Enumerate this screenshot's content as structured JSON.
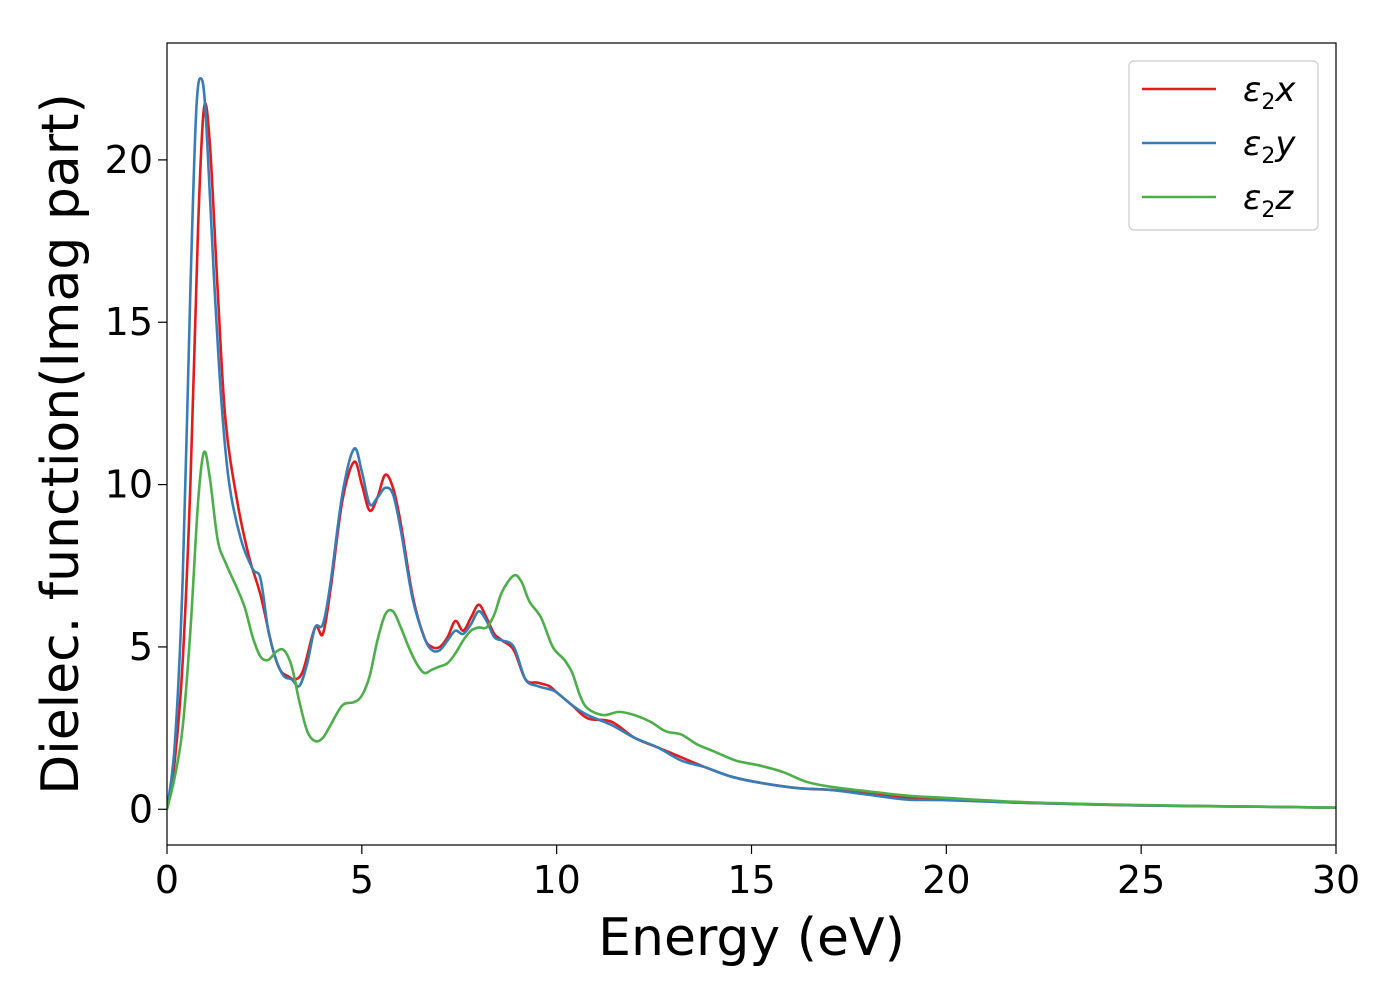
{
  "chart_data": {
    "type": "line",
    "xlabel": "Energy (eV)",
    "ylabel": "Dielec. function(Imag part)",
    "xlim": [
      0,
      30
    ],
    "ylim": [
      -1.1,
      23.6
    ],
    "xticks": [
      "0",
      "5",
      "10",
      "15",
      "20",
      "25",
      "30"
    ],
    "yticks": [
      "0",
      "5",
      "10",
      "15",
      "20"
    ],
    "grid": false,
    "legend_position": "top-right",
    "series": [
      {
        "name": "ε2x",
        "legend_base": "ε",
        "legend_sub": "2",
        "legend_tail": "x",
        "color": "#e41a1c",
        "points": [
          [
            0,
            0
          ],
          [
            0.2,
            1.5
          ],
          [
            0.4,
            4.5
          ],
          [
            0.6,
            10
          ],
          [
            0.8,
            18
          ],
          [
            0.95,
            21.6
          ],
          [
            1.1,
            20.5
          ],
          [
            1.3,
            16
          ],
          [
            1.5,
            12
          ],
          [
            1.8,
            9.5
          ],
          [
            2.1,
            7.8
          ],
          [
            2.4,
            6.6
          ],
          [
            2.7,
            5.0
          ],
          [
            2.9,
            4.3
          ],
          [
            3.1,
            4.1
          ],
          [
            3.3,
            4.0
          ],
          [
            3.5,
            4.3
          ],
          [
            3.8,
            5.6
          ],
          [
            4.0,
            5.4
          ],
          [
            4.2,
            6.8
          ],
          [
            4.5,
            9.5
          ],
          [
            4.8,
            10.7
          ],
          [
            5.0,
            10.0
          ],
          [
            5.2,
            9.2
          ],
          [
            5.4,
            9.6
          ],
          [
            5.6,
            10.3
          ],
          [
            5.8,
            9.9
          ],
          [
            6.0,
            8.8
          ],
          [
            6.3,
            6.6
          ],
          [
            6.6,
            5.3
          ],
          [
            6.8,
            5.0
          ],
          [
            7.0,
            5.0
          ],
          [
            7.2,
            5.3
          ],
          [
            7.4,
            5.8
          ],
          [
            7.6,
            5.5
          ],
          [
            7.8,
            5.9
          ],
          [
            8.0,
            6.3
          ],
          [
            8.2,
            5.9
          ],
          [
            8.4,
            5.4
          ],
          [
            8.6,
            5.2
          ],
          [
            8.9,
            4.9
          ],
          [
            9.2,
            4.0
          ],
          [
            9.5,
            3.9
          ],
          [
            9.8,
            3.8
          ],
          [
            10.0,
            3.6
          ],
          [
            10.4,
            3.2
          ],
          [
            10.8,
            2.8
          ],
          [
            11.4,
            2.7
          ],
          [
            12.0,
            2.2
          ],
          [
            12.6,
            1.9
          ],
          [
            13.2,
            1.6
          ],
          [
            13.8,
            1.3
          ],
          [
            14.5,
            1.0
          ],
          [
            15.3,
            0.8
          ],
          [
            16.2,
            0.65
          ],
          [
            17.0,
            0.6
          ],
          [
            18.0,
            0.5
          ],
          [
            19.0,
            0.35
          ],
          [
            20.0,
            0.3
          ],
          [
            22.0,
            0.2
          ],
          [
            25.0,
            0.12
          ],
          [
            28.0,
            0.08
          ],
          [
            30.0,
            0.05
          ]
        ]
      },
      {
        "name": "ε2y",
        "legend_base": "ε",
        "legend_sub": "2",
        "legend_tail": "y",
        "color": "#377eb8",
        "points": [
          [
            0,
            0
          ],
          [
            0.2,
            2.0
          ],
          [
            0.4,
            7
          ],
          [
            0.6,
            16
          ],
          [
            0.75,
            21.5
          ],
          [
            0.88,
            22.5
          ],
          [
            1.0,
            21.3
          ],
          [
            1.2,
            16.5
          ],
          [
            1.4,
            12.5
          ],
          [
            1.6,
            10
          ],
          [
            1.9,
            8.3
          ],
          [
            2.2,
            7.4
          ],
          [
            2.4,
            7.1
          ],
          [
            2.6,
            5.5
          ],
          [
            2.8,
            4.6
          ],
          [
            3.0,
            4.1
          ],
          [
            3.2,
            4.0
          ],
          [
            3.4,
            3.8
          ],
          [
            3.6,
            4.5
          ],
          [
            3.8,
            5.6
          ],
          [
            4.0,
            5.7
          ],
          [
            4.2,
            7.0
          ],
          [
            4.5,
            9.7
          ],
          [
            4.8,
            11.1
          ],
          [
            5.0,
            10.4
          ],
          [
            5.2,
            9.4
          ],
          [
            5.4,
            9.6
          ],
          [
            5.6,
            9.9
          ],
          [
            5.8,
            9.7
          ],
          [
            6.0,
            8.6
          ],
          [
            6.3,
            6.5
          ],
          [
            6.6,
            5.3
          ],
          [
            6.8,
            4.9
          ],
          [
            7.0,
            4.9
          ],
          [
            7.2,
            5.2
          ],
          [
            7.4,
            5.5
          ],
          [
            7.6,
            5.4
          ],
          [
            7.8,
            5.7
          ],
          [
            8.0,
            6.1
          ],
          [
            8.2,
            5.8
          ],
          [
            8.4,
            5.3
          ],
          [
            8.6,
            5.2
          ],
          [
            8.9,
            5.0
          ],
          [
            9.2,
            4.0
          ],
          [
            9.5,
            3.8
          ],
          [
            9.8,
            3.7
          ],
          [
            10.0,
            3.6
          ],
          [
            10.4,
            3.2
          ],
          [
            10.8,
            2.9
          ],
          [
            11.4,
            2.6
          ],
          [
            12.0,
            2.2
          ],
          [
            12.6,
            1.9
          ],
          [
            13.2,
            1.5
          ],
          [
            13.8,
            1.3
          ],
          [
            14.5,
            1.0
          ],
          [
            15.3,
            0.8
          ],
          [
            16.2,
            0.65
          ],
          [
            17.0,
            0.6
          ],
          [
            18.0,
            0.45
          ],
          [
            19.0,
            0.3
          ],
          [
            20.0,
            0.28
          ],
          [
            22.0,
            0.2
          ],
          [
            25.0,
            0.12
          ],
          [
            28.0,
            0.08
          ],
          [
            30.0,
            0.05
          ]
        ]
      },
      {
        "name": "ε2z",
        "legend_base": "ε",
        "legend_sub": "2",
        "legend_tail": "z",
        "color": "#4daf4a",
        "points": [
          [
            0,
            0
          ],
          [
            0.2,
            1.0
          ],
          [
            0.4,
            2.5
          ],
          [
            0.6,
            5.5
          ],
          [
            0.8,
            9.5
          ],
          [
            0.95,
            11.0
          ],
          [
            1.1,
            10.2
          ],
          [
            1.3,
            8.3
          ],
          [
            1.5,
            7.6
          ],
          [
            1.8,
            6.8
          ],
          [
            2.0,
            6.2
          ],
          [
            2.2,
            5.3
          ],
          [
            2.4,
            4.7
          ],
          [
            2.6,
            4.6
          ],
          [
            2.8,
            4.85
          ],
          [
            3.0,
            4.9
          ],
          [
            3.2,
            4.4
          ],
          [
            3.4,
            3.3
          ],
          [
            3.6,
            2.4
          ],
          [
            3.8,
            2.1
          ],
          [
            4.0,
            2.2
          ],
          [
            4.2,
            2.6
          ],
          [
            4.5,
            3.2
          ],
          [
            4.8,
            3.3
          ],
          [
            5.0,
            3.5
          ],
          [
            5.2,
            4.1
          ],
          [
            5.4,
            5.2
          ],
          [
            5.6,
            6.0
          ],
          [
            5.8,
            6.1
          ],
          [
            6.0,
            5.6
          ],
          [
            6.2,
            5.0
          ],
          [
            6.4,
            4.5
          ],
          [
            6.6,
            4.2
          ],
          [
            6.8,
            4.3
          ],
          [
            7.0,
            4.4
          ],
          [
            7.2,
            4.5
          ],
          [
            7.4,
            4.8
          ],
          [
            7.6,
            5.2
          ],
          [
            7.8,
            5.5
          ],
          [
            8.0,
            5.6
          ],
          [
            8.2,
            5.6
          ],
          [
            8.4,
            6.0
          ],
          [
            8.6,
            6.7
          ],
          [
            8.9,
            7.2
          ],
          [
            9.1,
            7.0
          ],
          [
            9.3,
            6.4
          ],
          [
            9.6,
            5.9
          ],
          [
            9.9,
            5.0
          ],
          [
            10.2,
            4.6
          ],
          [
            10.4,
            4.2
          ],
          [
            10.6,
            3.5
          ],
          [
            10.8,
            3.1
          ],
          [
            11.2,
            2.9
          ],
          [
            11.6,
            3.0
          ],
          [
            12.0,
            2.9
          ],
          [
            12.4,
            2.7
          ],
          [
            12.8,
            2.4
          ],
          [
            13.2,
            2.3
          ],
          [
            13.6,
            2.0
          ],
          [
            14.0,
            1.8
          ],
          [
            14.6,
            1.5
          ],
          [
            15.2,
            1.35
          ],
          [
            15.8,
            1.15
          ],
          [
            16.4,
            0.85
          ],
          [
            17.0,
            0.7
          ],
          [
            18.0,
            0.55
          ],
          [
            19.0,
            0.42
          ],
          [
            20.0,
            0.35
          ],
          [
            22.0,
            0.22
          ],
          [
            25.0,
            0.13
          ],
          [
            28.0,
            0.08
          ],
          [
            30.0,
            0.05
          ]
        ]
      }
    ]
  }
}
